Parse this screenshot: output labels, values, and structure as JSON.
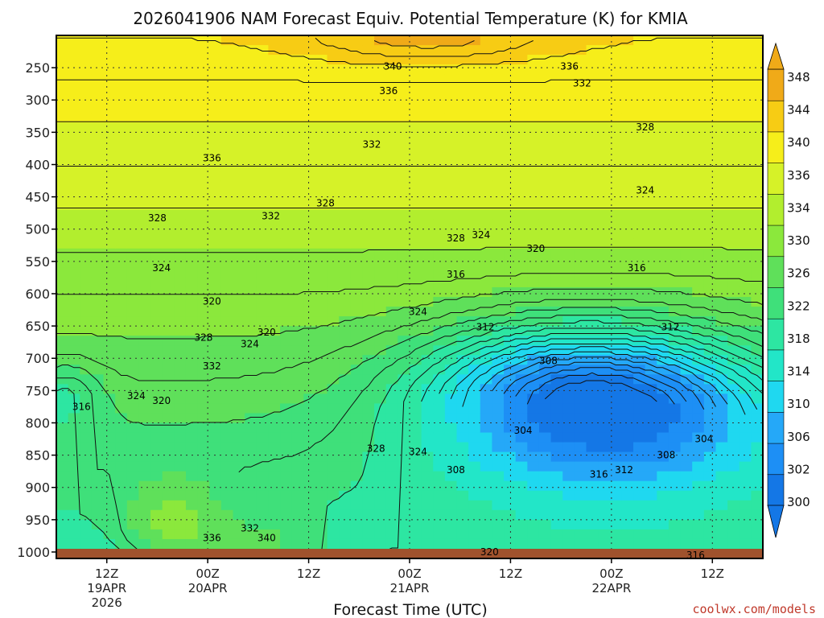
{
  "chart_data": {
    "type": "heatmap",
    "title": "2026041906 NAM Forecast Equiv. Potential Temperature (K) for KMIA",
    "xlabel": "Forecast Time (UTC)",
    "ylabel": "",
    "credit": "coolwx.com/models",
    "x_ticks": [
      {
        "label": [
          "12Z",
          "19APR",
          "2026"
        ]
      },
      {
        "label": [
          "00Z",
          "20APR"
        ]
      },
      {
        "label": [
          "12Z"
        ]
      },
      {
        "label": [
          "00Z",
          "21APR"
        ]
      },
      {
        "label": [
          "12Z"
        ]
      },
      {
        "label": [
          "00Z",
          "22APR"
        ]
      },
      {
        "label": [
          "12Z"
        ]
      }
    ],
    "x_tick_hours": [
      12,
      24,
      36,
      48,
      60,
      72,
      84
    ],
    "x_range_hours": [
      6,
      90
    ],
    "y_ticks": [
      250,
      300,
      350,
      400,
      450,
      500,
      550,
      600,
      650,
      700,
      750,
      800,
      850,
      900,
      950,
      1000
    ],
    "y_range_hPa": [
      200,
      1010
    ],
    "colorbar_levels": [
      300,
      302,
      306,
      310,
      314,
      318,
      322,
      326,
      330,
      334,
      336,
      340,
      344,
      348
    ],
    "colorbar_label_values": [
      "348",
      "344",
      "340",
      "336",
      "334",
      "330",
      "326",
      "322",
      "318",
      "314",
      "310",
      "306",
      "302",
      "300"
    ],
    "colorbar_colors": [
      "#1477e6",
      "#1d8ff5",
      "#25a8f8",
      "#1fd8f0",
      "#22e6c8",
      "#2de6a2",
      "#3fe07a",
      "#5fe05a",
      "#8be83c",
      "#b2ee2e",
      "#d6f228",
      "#f6ee1a",
      "#f7cc14",
      "#f0aa18"
    ],
    "series": [
      {
        "name": "contour_labels",
        "values": [
          {
            "text": "340",
            "hour": 46.0,
            "p": 248
          },
          {
            "text": "336",
            "hour": 67.0,
            "p": 248
          },
          {
            "text": "336",
            "hour": 45.5,
            "p": 286
          },
          {
            "text": "332",
            "hour": 68.5,
            "p": 274
          },
          {
            "text": "328",
            "hour": 76.0,
            "p": 342
          },
          {
            "text": "332",
            "hour": 43.5,
            "p": 369
          },
          {
            "text": "336",
            "hour": 24.5,
            "p": 390
          },
          {
            "text": "328",
            "hour": 38.0,
            "p": 460
          },
          {
            "text": "324",
            "hour": 76.0,
            "p": 440
          },
          {
            "text": "332",
            "hour": 31.5,
            "p": 480
          },
          {
            "text": "328",
            "hour": 18.0,
            "p": 483
          },
          {
            "text": "328",
            "hour": 53.5,
            "p": 514
          },
          {
            "text": "324",
            "hour": 56.5,
            "p": 509
          },
          {
            "text": "320",
            "hour": 63.0,
            "p": 530
          },
          {
            "text": "324",
            "hour": 18.5,
            "p": 560
          },
          {
            "text": "316",
            "hour": 75.0,
            "p": 560
          },
          {
            "text": "316",
            "hour": 53.5,
            "p": 570
          },
          {
            "text": "320",
            "hour": 24.5,
            "p": 612
          },
          {
            "text": "324",
            "hour": 49.0,
            "p": 628
          },
          {
            "text": "320",
            "hour": 31.0,
            "p": 660
          },
          {
            "text": "312",
            "hour": 57.0,
            "p": 652
          },
          {
            "text": "312",
            "hour": 79.0,
            "p": 652
          },
          {
            "text": "328",
            "hour": 23.5,
            "p": 668
          },
          {
            "text": "324",
            "hour": 29.0,
            "p": 678
          },
          {
            "text": "332",
            "hour": 24.5,
            "p": 712
          },
          {
            "text": "308",
            "hour": 64.5,
            "p": 704
          },
          {
            "text": "324",
            "hour": 15.5,
            "p": 758
          },
          {
            "text": "320",
            "hour": 18.5,
            "p": 766
          },
          {
            "text": "316",
            "hour": 9.0,
            "p": 775
          },
          {
            "text": "304",
            "hour": 61.5,
            "p": 812
          },
          {
            "text": "304",
            "hour": 83.0,
            "p": 825
          },
          {
            "text": "328",
            "hour": 44.0,
            "p": 840
          },
          {
            "text": "324",
            "hour": 49.0,
            "p": 845
          },
          {
            "text": "308",
            "hour": 78.5,
            "p": 850
          },
          {
            "text": "312",
            "hour": 73.5,
            "p": 873
          },
          {
            "text": "308",
            "hour": 53.5,
            "p": 873
          },
          {
            "text": "316",
            "hour": 70.5,
            "p": 880
          },
          {
            "text": "332",
            "hour": 29.0,
            "p": 963
          },
          {
            "text": "336",
            "hour": 24.5,
            "p": 978
          },
          {
            "text": "340",
            "hour": 31.0,
            "p": 978
          },
          {
            "text": "320",
            "hour": 57.5,
            "p": 1000
          },
          {
            "text": "316",
            "hour": 82.0,
            "p": 1005
          }
        ]
      }
    ]
  }
}
